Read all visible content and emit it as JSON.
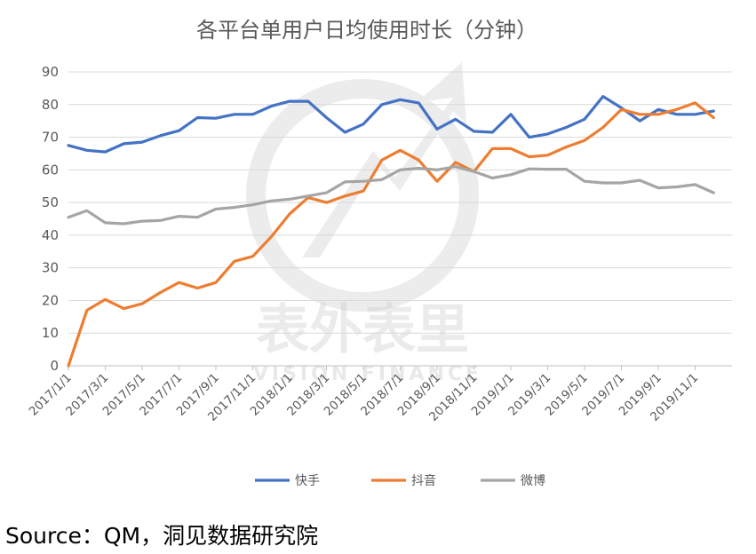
{
  "chart_data": {
    "type": "line",
    "title": "各平台单用户日均使用时长（分钟）",
    "xlabel": "",
    "ylabel": "",
    "ylim": [
      0,
      90
    ],
    "y_ticks": [
      0,
      10,
      20,
      30,
      40,
      50,
      60,
      70,
      80,
      90
    ],
    "grid": "horizontal",
    "legend_position": "bottom",
    "x_tick_labels": [
      "2017/1/1",
      "2017/3/1",
      "2017/5/1",
      "2017/7/1",
      "2017/9/1",
      "2017/11/1",
      "2018/1/1",
      "2018/3/1",
      "2018/5/1",
      "2018/7/1",
      "2018/9/1",
      "2018/11/1",
      "2019/1/1",
      "2019/3/1",
      "2019/5/1",
      "2019/7/1",
      "2019/9/1",
      "2019/11/1"
    ],
    "x": [
      "2017/1",
      "2017/2",
      "2017/3",
      "2017/4",
      "2017/5",
      "2017/6",
      "2017/7",
      "2017/8",
      "2017/9",
      "2017/10",
      "2017/11",
      "2017/12",
      "2018/1",
      "2018/2",
      "2018/3",
      "2018/4",
      "2018/5",
      "2018/6",
      "2018/7",
      "2018/8",
      "2018/9",
      "2018/10",
      "2018/11",
      "2018/12",
      "2019/1",
      "2019/2",
      "2019/3",
      "2019/4",
      "2019/5",
      "2019/6",
      "2019/7",
      "2019/8",
      "2019/9",
      "2019/10",
      "2019/11",
      "2019/12"
    ],
    "series": [
      {
        "name": "快手",
        "color": "#4472c4",
        "values": [
          67.5,
          66,
          65.5,
          68,
          68.5,
          70.5,
          72,
          76,
          75.8,
          77,
          77,
          79.5,
          81,
          81,
          76,
          71.5,
          74,
          80,
          81.5,
          80.5,
          72.5,
          75.5,
          71.8,
          71.5,
          77,
          70,
          71,
          73,
          75.5,
          82.5,
          79,
          75,
          78.5,
          77,
          77,
          78
        ]
      },
      {
        "name": "抖音",
        "color": "#ed7d31",
        "values": [
          0,
          17,
          20.3,
          17.5,
          19,
          22.5,
          25.5,
          23.8,
          25.5,
          32,
          33.5,
          39.5,
          46.5,
          51.5,
          50,
          52,
          53.5,
          63,
          66,
          63,
          56.5,
          62.3,
          59.5,
          66.5,
          66.5,
          64,
          64.5,
          67,
          69,
          73,
          78.5,
          77,
          77,
          78.5,
          80.5,
          76
        ]
      },
      {
        "name": "微博",
        "color": "#a5a5a5",
        "values": [
          45.5,
          47.5,
          43.8,
          43.5,
          44.3,
          44.5,
          45.8,
          45.5,
          48,
          48.5,
          49.3,
          50.5,
          51,
          52,
          53,
          56.3,
          56.5,
          57,
          60,
          60.5,
          60,
          61,
          59.5,
          57.5,
          58.5,
          60.3,
          60.2,
          60.2,
          56.5,
          56,
          56,
          56.8,
          54.5,
          54.8,
          55.5,
          53
        ]
      }
    ]
  },
  "watermark": {
    "cn": "表外表里",
    "en": "VISION FINANCE"
  },
  "source": "Source：QM，洞见数据研究院"
}
